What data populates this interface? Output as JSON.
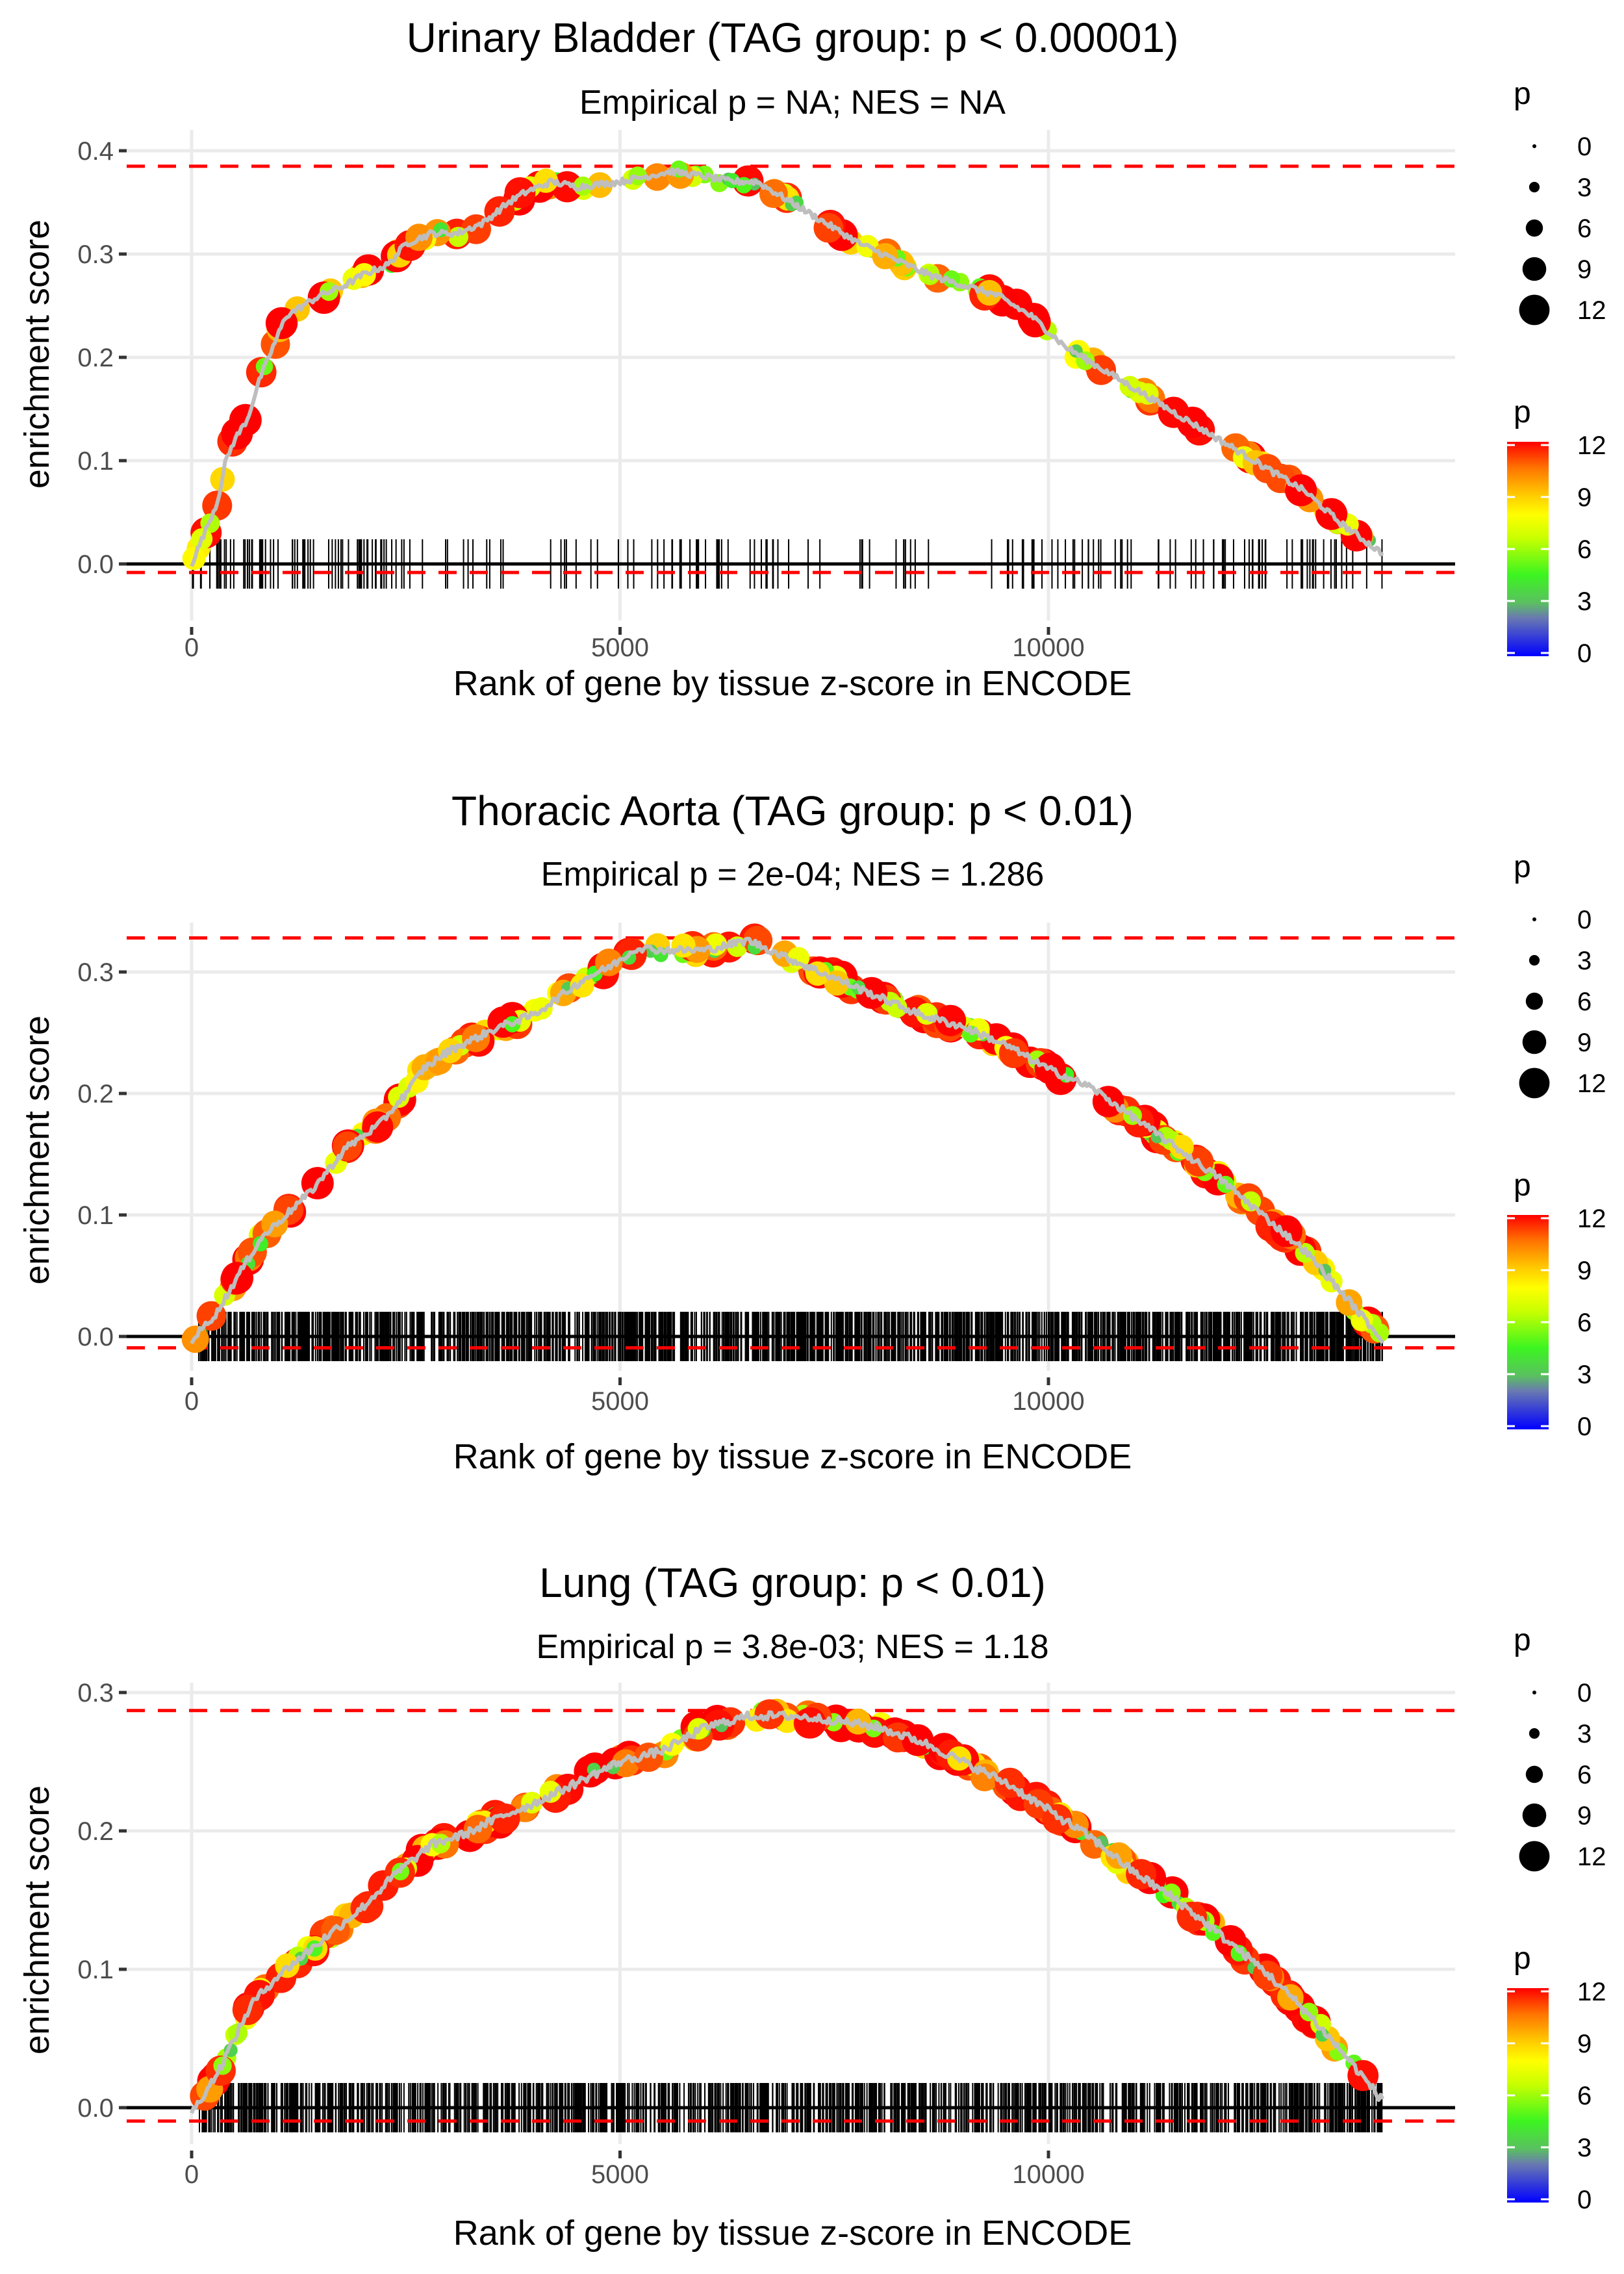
{
  "chart_data": [
    {
      "type": "line",
      "title": "Urinary Bladder (TAG group: p < 0.00001)",
      "subtitle": "Empirical p = NA; NES = NA",
      "xlabel": "Rank of gene by tissue z-score in ENCODE",
      "ylabel": "enrichment score",
      "xlim": [
        -750,
        14750
      ],
      "ylim": [
        -0.02,
        0.405
      ],
      "x_ticks": [
        0,
        5000,
        10000
      ],
      "x_tick_labels": [
        "0",
        "5000",
        "10000"
      ],
      "y_ticks": [
        0.0,
        0.1,
        0.2,
        0.3,
        0.4
      ],
      "y_tick_labels": [
        "0.0",
        "0.1",
        "0.2",
        "0.3",
        "0.4"
      ],
      "grid": true,
      "max_es": 0.385,
      "min_es": -0.002,
      "rug_density": "sparse",
      "rug_count": 200,
      "x_end": 13900,
      "series": [
        {
          "name": "running enrichment score",
          "x": [
            0,
            150,
            300,
            400,
            500,
            650,
            800,
            900,
            1000,
            1100,
            1300,
            1500,
            1800,
            2000,
            2300,
            2500,
            2800,
            3100,
            3400,
            3700,
            3900,
            4200,
            4500,
            5000,
            5300,
            5600,
            6000,
            6300,
            6600,
            7000,
            7400,
            7800,
            8200,
            8600,
            9000,
            9400,
            9800,
            10200,
            10600,
            11000,
            11400,
            11800,
            12200,
            12600,
            13000,
            13400,
            13900
          ],
          "y": [
            0.0,
            0.03,
            0.06,
            0.1,
            0.12,
            0.14,
            0.18,
            0.2,
            0.22,
            0.24,
            0.25,
            0.26,
            0.27,
            0.28,
            0.29,
            0.31,
            0.32,
            0.32,
            0.33,
            0.35,
            0.36,
            0.37,
            0.365,
            0.37,
            0.375,
            0.38,
            0.375,
            0.37,
            0.37,
            0.35,
            0.33,
            0.31,
            0.295,
            0.28,
            0.27,
            0.26,
            0.24,
            0.21,
            0.19,
            0.17,
            0.15,
            0.13,
            0.11,
            0.09,
            0.07,
            0.04,
            0.01
          ]
        }
      ]
    },
    {
      "type": "line",
      "title": "Thoracic Aorta (TAG group: p < 0.01)",
      "subtitle": "Empirical p = 2e-04; NES = 1.286",
      "xlabel": "Rank of gene by tissue z-score in ENCODE",
      "ylabel": "enrichment score",
      "xlim": [
        -750,
        14750
      ],
      "ylim": [
        -0.022,
        0.34
      ],
      "x_ticks": [
        0,
        5000,
        10000
      ],
      "x_tick_labels": [
        "0",
        "5000",
        "10000"
      ],
      "y_ticks": [
        0.0,
        0.1,
        0.2,
        0.3
      ],
      "y_tick_labels": [
        "0.0",
        "0.1",
        "0.2",
        "0.3"
      ],
      "grid": true,
      "max_es": 0.328,
      "min_es": -0.004,
      "rug_density": "dense",
      "rug_count": 1400,
      "x_end": 13900,
      "series": [
        {
          "name": "running enrichment score",
          "x": [
            0,
            300,
            500,
            800,
            1100,
            1400,
            1800,
            2200,
            2500,
            2700,
            3000,
            3300,
            3600,
            4000,
            4300,
            4600,
            4900,
            5200,
            5500,
            6000,
            6500,
            7000,
            7500,
            8000,
            8500,
            9000,
            9500,
            10000,
            10500,
            11000,
            11500,
            12000,
            12500,
            13000,
            13500,
            13900
          ],
          "y": [
            -0.003,
            0.02,
            0.045,
            0.08,
            0.1,
            0.12,
            0.155,
            0.175,
            0.2,
            0.22,
            0.235,
            0.245,
            0.255,
            0.265,
            0.28,
            0.295,
            0.305,
            0.32,
            0.318,
            0.318,
            0.326,
            0.31,
            0.295,
            0.28,
            0.265,
            0.255,
            0.24,
            0.22,
            0.205,
            0.18,
            0.155,
            0.13,
            0.1,
            0.07,
            0.03,
            -0.003
          ]
        }
      ]
    },
    {
      "type": "line",
      "title": "Lung (TAG group: p < 0.01)",
      "subtitle": "Empirical p = 3.8e-03; NES = 1.18",
      "xlabel": "Rank of gene by tissue z-score in ENCODE",
      "ylabel": "enrichment score",
      "xlim": [
        -750,
        14750
      ],
      "ylim": [
        -0.022,
        0.305
      ],
      "x_ticks": [
        0,
        5000,
        10000
      ],
      "x_tick_labels": [
        "0",
        "5000",
        "10000"
      ],
      "y_ticks": [
        0.0,
        0.1,
        0.2,
        0.3
      ],
      "y_tick_labels": [
        "0.0",
        "0.1",
        "0.2",
        "0.3"
      ],
      "grid": true,
      "max_es": 0.287,
      "min_es": -0.005,
      "rug_density": "dense",
      "rug_count": 1100,
      "x_end": 13900,
      "series": [
        {
          "name": "running enrichment score",
          "x": [
            0,
            300,
            500,
            700,
            1000,
            1300,
            1600,
            2000,
            2400,
            2800,
            3200,
            3600,
            4000,
            4500,
            5000,
            5500,
            6000,
            6500,
            7000,
            7500,
            8000,
            8500,
            9000,
            9500,
            10000,
            10500,
            11000,
            11500,
            12000,
            12500,
            13000,
            13500,
            13900
          ],
          "y": [
            -0.004,
            0.025,
            0.05,
            0.075,
            0.095,
            0.11,
            0.125,
            0.145,
            0.17,
            0.19,
            0.198,
            0.21,
            0.22,
            0.235,
            0.25,
            0.258,
            0.275,
            0.283,
            0.283,
            0.28,
            0.275,
            0.265,
            0.25,
            0.235,
            0.215,
            0.195,
            0.17,
            0.15,
            0.125,
            0.1,
            0.07,
            0.035,
            0.005
          ]
        }
      ]
    }
  ],
  "legend": {
    "size_title": "p",
    "size_labels": [
      "0",
      "3",
      "6",
      "9",
      "12"
    ],
    "size_values": [
      0,
      3,
      6,
      9,
      12
    ],
    "color_title": "p",
    "color_labels": [
      "12",
      "9",
      "6",
      "3",
      "0"
    ],
    "color_values": [
      12,
      9,
      6,
      3,
      0
    ],
    "color_scale": [
      "#0000ff",
      "#5aa86a",
      "#44ee22",
      "#e8f800",
      "#ffcc00",
      "#ff7700",
      "#ff0000"
    ]
  },
  "colors": {
    "curve": "#bebebe",
    "reference_line": "#ff0000",
    "zero_line": "#000000",
    "grid": "#ebebeb",
    "rug": "#000000"
  }
}
